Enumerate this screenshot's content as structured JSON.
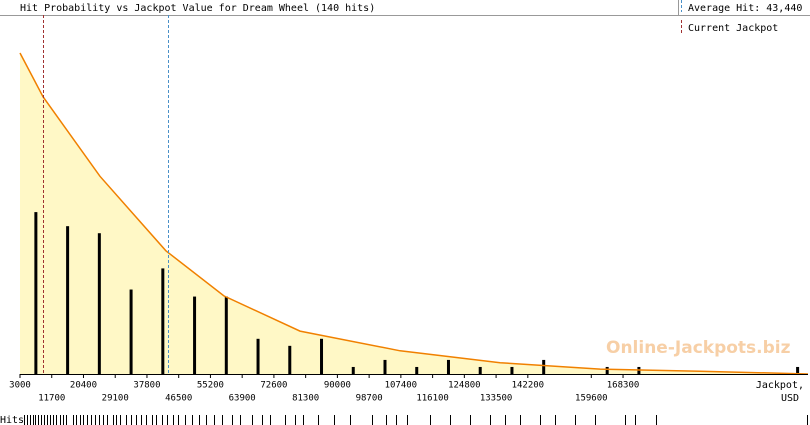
{
  "chart_data": {
    "type": "histogram-density",
    "title": "Hit Probability vs Jackpot Value for Dream Wheel (140 hits)",
    "watermark": "Online-Jackpots.biz",
    "x_label": [
      "Jackpot,",
      "USD"
    ],
    "rug_label": "Hits",
    "xlim": [
      3000,
      219000
    ],
    "ylim": [
      0,
      51
    ],
    "xticks": [
      3000,
      11700,
      20400,
      29100,
      37800,
      46500,
      55200,
      63900,
      72600,
      81300,
      90000,
      98700,
      107400,
      116100,
      124800,
      133500,
      142200,
      159600,
      168300
    ],
    "average": {
      "name": "Average Hit: 43,440",
      "value": 43440,
      "color": "#4a90c8"
    },
    "current": {
      "name": "Current Jackpot",
      "value": 9300,
      "color": "#a03030"
    },
    "hits": {
      "color": "#000000",
      "x": [
        7350,
        16050,
        24750,
        33450,
        42150,
        50850,
        59550,
        68250,
        76950,
        85650,
        94350,
        103050,
        111750,
        120450,
        129150,
        137850,
        146550,
        163950,
        172650,
        216150
      ],
      "values": [
        23,
        21,
        20,
        12,
        15,
        11,
        11,
        5,
        4,
        5,
        1,
        2,
        1,
        2,
        1,
        1,
        2,
        1,
        1,
        1
      ]
    },
    "fit": {
      "color": "#f08000",
      "fill": "#fff8c6",
      "x": [
        3000,
        9300,
        24900,
        43000,
        58900,
        79750,
        107200,
        134600,
        162000,
        189400,
        219000
      ],
      "values": [
        45.6,
        39.4,
        28.1,
        17.5,
        11.1,
        6.1,
        3.3,
        1.6,
        0.7,
        0.4,
        0
      ]
    },
    "rug": [
      4100,
      4900,
      5700,
      6600,
      7100,
      7900,
      8800,
      9600,
      10400,
      11200,
      12000,
      12900,
      14000,
      14800,
      15600,
      17500,
      18400,
      19400,
      20300,
      21400,
      22500,
      23600,
      24700,
      25800,
      26800,
      28500,
      29300,
      30400,
      32100,
      33400,
      34800,
      36200,
      37500,
      39200,
      40300,
      41900,
      43300,
      44900,
      46300,
      48200,
      50100,
      52100,
      54000,
      56200,
      58400,
      61100,
      63300,
      66600,
      69300,
      71500,
      75600,
      78400,
      80600,
      84700,
      89100,
      93500,
      99500,
      103300,
      106100,
      109100,
      115400,
      120900,
      126400,
      131900,
      135900,
      140100,
      145500,
      149600,
      155100,
      160600,
      168800,
      171600,
      177300,
      218700
    ]
  }
}
